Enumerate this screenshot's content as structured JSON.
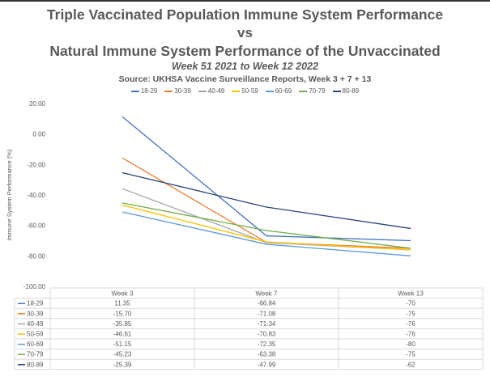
{
  "chart_data": {
    "type": "line",
    "title": "Triple Vaccinated Population Immune System Performance",
    "title_vs": "vs",
    "title_line2": "Natural Immune System Performance of the Unvaccinated",
    "subtitle": "Week 51 2021 to Week 12 2022",
    "source": "Source: UKHSA Vaccine Surveillance Reports, Week 3 + 7 + 13",
    "xlabel": "",
    "ylabel": "Immune System Performance (%)",
    "ylim": [
      -100,
      20
    ],
    "yticks": [
      "20.00",
      "0.00",
      "-20.00",
      "-40.00",
      "-60.00",
      "-80.00",
      "-100.00"
    ],
    "ytick_values": [
      20,
      0,
      -20,
      -40,
      -60,
      -80,
      -100
    ],
    "categories": [
      "Week 3",
      "Week 7",
      "Week 13"
    ],
    "legend_position": "top",
    "grid": false,
    "data_table": true,
    "series": [
      {
        "name": "18-29",
        "color": "#4472C4",
        "values": [
          11.35,
          -66.84,
          -70
        ],
        "labels": [
          "11.35",
          "-66.84",
          "-70"
        ]
      },
      {
        "name": "30-39",
        "color": "#ED7D31",
        "values": [
          -15.7,
          -71.08,
          -75
        ],
        "labels": [
          "-15.70",
          "-71.08",
          "-75"
        ]
      },
      {
        "name": "40-49",
        "color": "#A5A5A5",
        "values": [
          -35.85,
          -71.34,
          -76
        ],
        "labels": [
          "-35.85",
          "-71.34",
          "-76"
        ]
      },
      {
        "name": "50-59",
        "color": "#FFC000",
        "values": [
          -46.61,
          -70.83,
          -76
        ],
        "labels": [
          "-46.61",
          "-70.83",
          "-76"
        ]
      },
      {
        "name": "60-69",
        "color": "#5B9BD5",
        "values": [
          -51.15,
          -72.35,
          -80
        ],
        "labels": [
          "-51.15",
          "-72.35",
          "-80"
        ]
      },
      {
        "name": "70-79",
        "color": "#70AD47",
        "values": [
          -45.23,
          -63.38,
          -75
        ],
        "labels": [
          "-45.23",
          "-63.38",
          "-75"
        ]
      },
      {
        "name": "80-89",
        "color": "#264478",
        "values": [
          -25.39,
          -47.99,
          -62
        ],
        "labels": [
          "-25.39",
          "-47.99",
          "-62"
        ]
      }
    ]
  }
}
